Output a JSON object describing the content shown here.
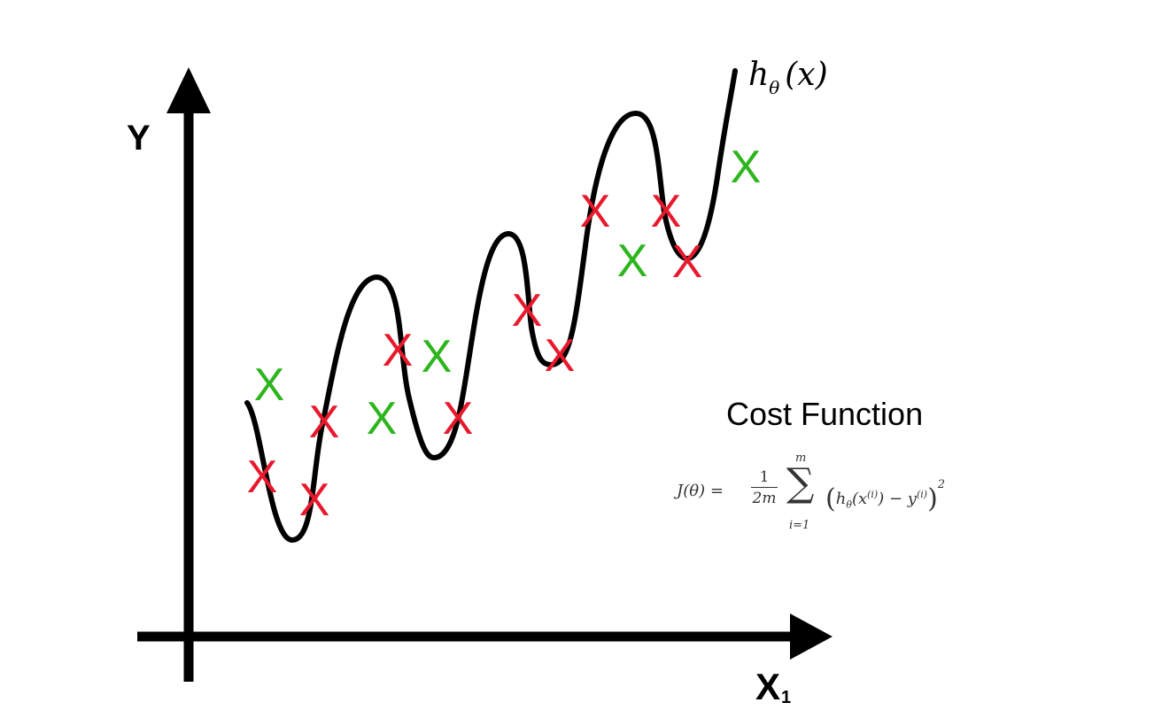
{
  "diagram": {
    "y_axis_label": "Y",
    "x_axis_label": "X",
    "x_axis_subscript": "1",
    "hypothesis_label": "h",
    "hypothesis_subscript": "θ",
    "hypothesis_arg": "(x)",
    "cost_title": "Cost Function",
    "formula": {
      "lhs": "J(θ) =",
      "numerator": "1",
      "denominator": "2m",
      "sigma": "∑",
      "upper": "m",
      "lower": "i=1",
      "body_pre": "h",
      "body_theta": "θ",
      "body_x": "(x",
      "body_sup_i": "(i)",
      "body_mid": ") − y",
      "body_sup_i2": "(i)",
      "square": "2"
    },
    "colors": {
      "axis": "#000000",
      "curve": "#000000",
      "training_marker": "#e8192c",
      "test_marker": "#2db51e"
    },
    "marker_symbol": "X"
  }
}
